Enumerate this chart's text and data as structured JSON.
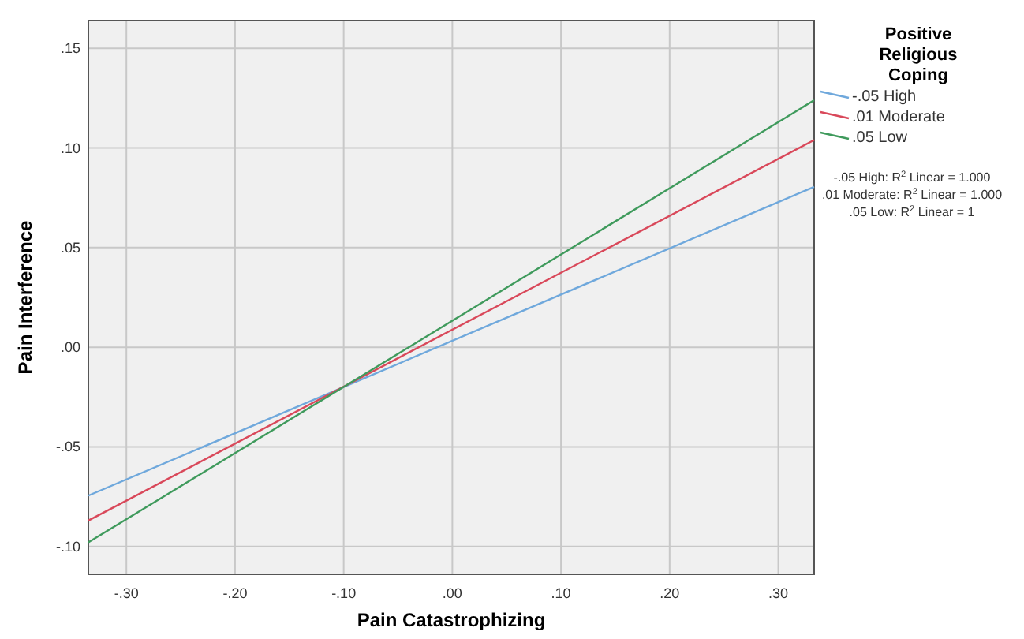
{
  "chart_data": {
    "type": "line",
    "xlabel": "Pain Catastrophizing",
    "ylabel": "Pain Interference",
    "legend_title": "Positive Religious Coping",
    "legend": "right",
    "grid": true,
    "marker": "none",
    "line_style": "solid",
    "x": [
      -0.335,
      0.333
    ],
    "xlim": [
      -0.335,
      0.333
    ],
    "xticks": [
      {
        "value": -0.3,
        "label": "-.30"
      },
      {
        "value": -0.2,
        "label": "-.20"
      },
      {
        "value": -0.1,
        "label": "-.10"
      },
      {
        "value": 0,
        "label": ".00"
      },
      {
        "value": 0.1,
        "label": ".10"
      },
      {
        "value": 0.2,
        "label": ".20"
      },
      {
        "value": 0.3,
        "label": ".30"
      }
    ],
    "ylim": [
      -0.114,
      0.164
    ],
    "yticks": [
      {
        "value": -0.1,
        "label": "-.10"
      },
      {
        "value": -0.05,
        "label": "-.05"
      },
      {
        "value": 0,
        "label": ".00"
      },
      {
        "value": 0.05,
        "label": ".05"
      },
      {
        "value": 0.1,
        "label": ".10"
      },
      {
        "value": 0.15,
        "label": ".15"
      }
    ],
    "series": [
      {
        "name": "-.05 High",
        "color": "#6fa8dc",
        "values": [
          -0.0745,
          0.0805
        ]
      },
      {
        "name": ".01 Moderate",
        "color": "#d9485a",
        "values": [
          -0.087,
          0.104
        ]
      },
      {
        "name": ".05 Low",
        "color": "#3f9a5c",
        "values": [
          -0.098,
          0.124
        ]
      }
    ],
    "annotations": [
      "-.05 High: R$^{2}$ Linear = 1.000",
      ".01 Moderate: R$^{2}$ Linear = 1.000",
      ".05 Low: R$^{2}$ Linear = 1"
    ]
  }
}
